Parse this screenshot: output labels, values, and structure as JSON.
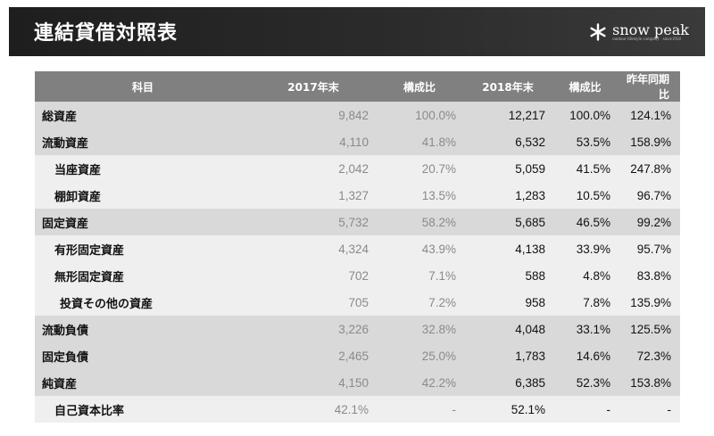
{
  "header": {
    "title": "連結貸借対照表"
  },
  "brand": {
    "name": "snow peak",
    "subtitle": "outdoor lifestyle company",
    "since": "since1958"
  },
  "table": {
    "columns": [
      "科目",
      "2017年末",
      "構成比",
      "2018年末",
      "構成比",
      "昨年同期比"
    ],
    "rows": [
      {
        "label": "総資産",
        "v2017": "9,842",
        "r2017": "100.0%",
        "v2018": "12,217",
        "r2018": "100.0%",
        "yoy": "124.1%"
      },
      {
        "label": "流動資産",
        "v2017": "4,110",
        "r2017": "41.8%",
        "v2018": "6,532",
        "r2018": "53.5%",
        "yoy": "158.9%"
      },
      {
        "label": "当座資産",
        "v2017": "2,042",
        "r2017": "20.7%",
        "v2018": "5,059",
        "r2018": "41.5%",
        "yoy": "247.8%"
      },
      {
        "label": "棚卸資産",
        "v2017": "1,327",
        "r2017": "13.5%",
        "v2018": "1,283",
        "r2018": "10.5%",
        "yoy": "96.7%"
      },
      {
        "label": "固定資産",
        "v2017": "5,732",
        "r2017": "58.2%",
        "v2018": "5,685",
        "r2018": "46.5%",
        "yoy": "99.2%"
      },
      {
        "label": "有形固定資産",
        "v2017": "4,324",
        "r2017": "43.9%",
        "v2018": "4,138",
        "r2018": "33.9%",
        "yoy": "95.7%"
      },
      {
        "label": "無形固定資産",
        "v2017": "702",
        "r2017": "7.1%",
        "v2018": "588",
        "r2018": "4.8%",
        "yoy": "83.8%"
      },
      {
        "label": "投資その他の資産",
        "v2017": "705",
        "r2017": "7.2%",
        "v2018": "958",
        "r2018": "7.8%",
        "yoy": "135.9%"
      },
      {
        "label": "流動負債",
        "v2017": "3,226",
        "r2017": "32.8%",
        "v2018": "4,048",
        "r2018": "33.1%",
        "yoy": "125.5%"
      },
      {
        "label": "固定負債",
        "v2017": "2,465",
        "r2017": "25.0%",
        "v2018": "1,783",
        "r2018": "14.6%",
        "yoy": "72.3%"
      },
      {
        "label": "純資産",
        "v2017": "4,150",
        "r2017": "42.2%",
        "v2018": "6,385",
        "r2018": "52.3%",
        "yoy": "153.8%"
      },
      {
        "label": "自己資本比率",
        "v2017": "42.1%",
        "r2017": "-",
        "v2018": "52.1%",
        "r2018": "-",
        "yoy": "-"
      }
    ]
  }
}
